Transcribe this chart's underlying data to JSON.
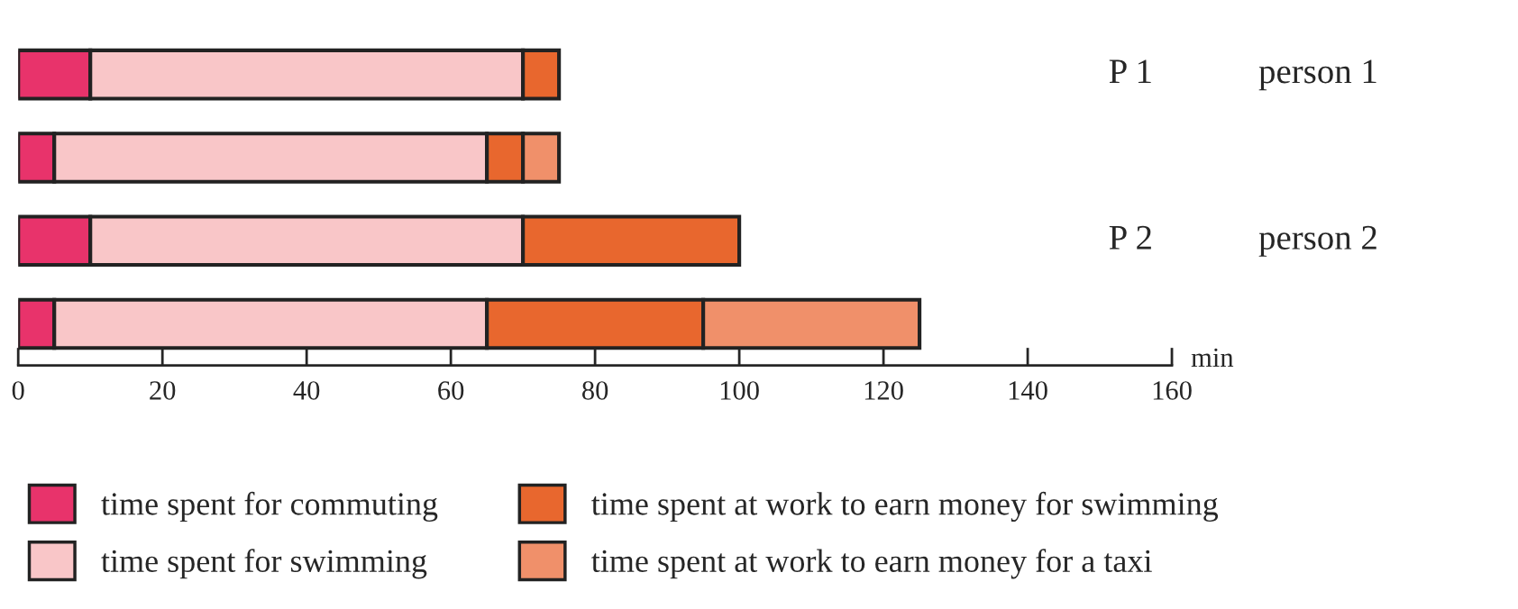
{
  "chart_data": {
    "type": "bar",
    "orientation": "horizontal",
    "stacked": true,
    "xlabel": "min",
    "categories": [
      null,
      null,
      null,
      null
    ],
    "series": [
      {
        "name": "time spent for commuting",
        "color": "#e8336b",
        "values": [
          10,
          5,
          10,
          5
        ]
      },
      {
        "name": "time spent for swimming",
        "color": "#f9c6c8",
        "values": [
          60,
          60,
          60,
          60
        ]
      },
      {
        "name": "time spent at work to earn money for swimming",
        "color": "#e8672e",
        "values": [
          5,
          5,
          30,
          30
        ]
      },
      {
        "name": "time spent at work to earn money for a taxi",
        "color": "#f0906a",
        "values": [
          null,
          5,
          null,
          30
        ]
      }
    ],
    "xlim": [
      0,
      160
    ],
    "xticks": [
      0,
      20,
      40,
      60,
      80,
      100,
      120,
      140,
      160
    ],
    "tick_labels": "x",
    "legend": "bottom",
    "grid": false,
    "annotations": [
      "P 1",
      "person 1",
      "P 2",
      "person 2"
    ]
  }
}
